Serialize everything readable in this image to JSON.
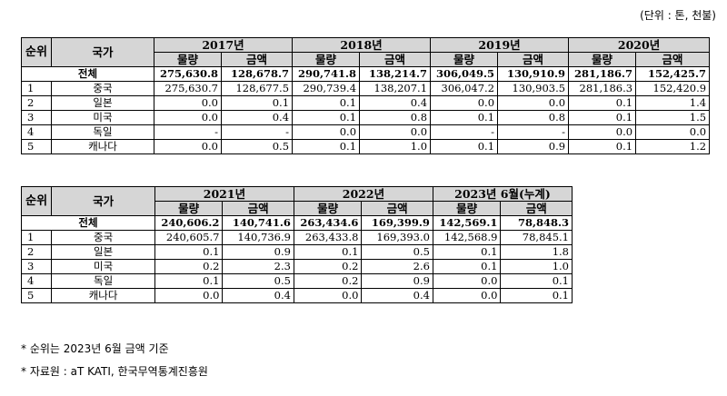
{
  "unit_note": "(단위 : 톤, 천불)",
  "table1": {
    "rank_header": "순위",
    "country_header": "국가",
    "years": [
      "2017년",
      "2018년",
      "2019년",
      "2020년"
    ],
    "sub_headers": [
      "물량",
      "금액"
    ],
    "total_label": "전체",
    "total": [
      "275,630.8",
      "128,678.7",
      "290,741.8",
      "138,214.7",
      "306,049.5",
      "130,910.9",
      "281,186.7",
      "152,425.7"
    ],
    "rows": [
      {
        "rank": "1",
        "country": "중국",
        "values": [
          "275,630.7",
          "128,677.5",
          "290,739.4",
          "138,207.1",
          "306,047.2",
          "130,903.5",
          "281,186.3",
          "152,420.9"
        ]
      },
      {
        "rank": "2",
        "country": "일본",
        "values": [
          "0.0",
          "0.1",
          "0.1",
          "0.4",
          "0.0",
          "0.0",
          "0.1",
          "1.4"
        ]
      },
      {
        "rank": "3",
        "country": "미국",
        "values": [
          "0.0",
          "0.4",
          "0.1",
          "0.8",
          "0.1",
          "0.8",
          "0.1",
          "1.5"
        ]
      },
      {
        "rank": "4",
        "country": "독일",
        "values": [
          "-",
          "-",
          "0.0",
          "0.0",
          "-",
          "-",
          "0.0",
          "0.0"
        ]
      },
      {
        "rank": "5",
        "country": "캐나다",
        "values": [
          "0.0",
          "0.5",
          "0.1",
          "1.0",
          "0.1",
          "0.9",
          "0.1",
          "1.2"
        ]
      }
    ]
  },
  "table2": {
    "rank_header": "순위",
    "country_header": "국가",
    "years": [
      "2021년",
      "2022년",
      "2023년 6월(누계)"
    ],
    "sub_headers": [
      "물량",
      "금액"
    ],
    "total_label": "전체",
    "total": [
      "240,606.2",
      "140,741.6",
      "263,434.6",
      "169,399.9",
      "142,569.1",
      "78,848.3"
    ],
    "rows": [
      {
        "rank": "1",
        "country": "중국",
        "values": [
          "240,605.7",
          "140,736.9",
          "263,433.8",
          "169,393.0",
          "142,568.9",
          "78,845.1"
        ]
      },
      {
        "rank": "2",
        "country": "일본",
        "values": [
          "0.1",
          "0.9",
          "0.1",
          "0.5",
          "0.1",
          "1.8"
        ]
      },
      {
        "rank": "3",
        "country": "미국",
        "values": [
          "0.2",
          "2.3",
          "0.2",
          "2.6",
          "0.1",
          "1.0"
        ]
      },
      {
        "rank": "4",
        "country": "독일",
        "values": [
          "0.1",
          "0.5",
          "0.2",
          "0.9",
          "0.0",
          "0.1"
        ]
      },
      {
        "rank": "5",
        "country": "캐나다",
        "values": [
          "0.0",
          "0.4",
          "0.0",
          "0.4",
          "0.0",
          "0.1"
        ]
      }
    ]
  },
  "notes": [
    "* 순위는 2023년 6월 금액 기준",
    "* 자료원 : aT KATI, 한국무역통계진흥원"
  ]
}
